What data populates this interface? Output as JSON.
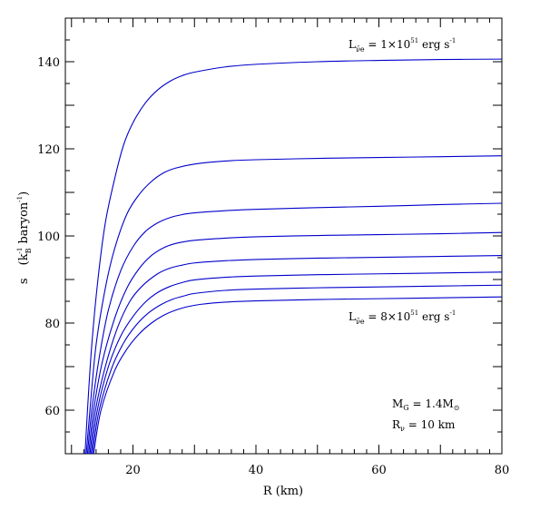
{
  "chart_data": {
    "type": "line",
    "xlabel": "R (km)",
    "ylabel_parts": {
      "main": "s",
      "open": "(k",
      "sub": "B",
      "sup": "-1",
      "rest": " baryon",
      "sup2": "-1",
      "close": ")"
    },
    "xlim": [
      9,
      80
    ],
    "ylim": [
      50,
      150
    ],
    "x_ticks": [
      20,
      40,
      60,
      80
    ],
    "y_ticks": [
      60,
      80,
      100,
      120,
      140
    ],
    "line_color": "#0000cc",
    "grid": false,
    "series": [
      {
        "points": [
          [
            12.2,
            50
          ],
          [
            12.6,
            60
          ],
          [
            13.3,
            75
          ],
          [
            14.3,
            90
          ],
          [
            15.5,
            103
          ],
          [
            17,
            113
          ],
          [
            18.5,
            121
          ],
          [
            20,
            126
          ],
          [
            22,
            130.5
          ],
          [
            24,
            133.5
          ],
          [
            26,
            135.5
          ],
          [
            28,
            136.8
          ],
          [
            30,
            137.6
          ],
          [
            35,
            138.8
          ],
          [
            40,
            139.4
          ],
          [
            50,
            140.0
          ],
          [
            60,
            140.3
          ],
          [
            70,
            140.5
          ],
          [
            80,
            140.6
          ]
        ]
      },
      {
        "points": [
          [
            12.4,
            50
          ],
          [
            13.0,
            60
          ],
          [
            14.0,
            75
          ],
          [
            15.5,
            88
          ],
          [
            17,
            97
          ],
          [
            19,
            105
          ],
          [
            21,
            109.5
          ],
          [
            23,
            112.5
          ],
          [
            25,
            114.5
          ],
          [
            27,
            115.6
          ],
          [
            30,
            116.5
          ],
          [
            35,
            117.2
          ],
          [
            40,
            117.5
          ],
          [
            50,
            117.8
          ],
          [
            60,
            118.0
          ],
          [
            70,
            118.2
          ],
          [
            80,
            118.4
          ]
        ]
      },
      {
        "points": [
          [
            12.6,
            50
          ],
          [
            13.3,
            60
          ],
          [
            14.5,
            72
          ],
          [
            16,
            83
          ],
          [
            18,
            92
          ],
          [
            20,
            97.5
          ],
          [
            22,
            101
          ],
          [
            24,
            103
          ],
          [
            26,
            104.2
          ],
          [
            28,
            104.9
          ],
          [
            30,
            105.3
          ],
          [
            35,
            105.8
          ],
          [
            40,
            106.1
          ],
          [
            50,
            106.5
          ],
          [
            60,
            106.8
          ],
          [
            70,
            107.2
          ],
          [
            80,
            107.5
          ]
        ]
      },
      {
        "points": [
          [
            12.8,
            50
          ],
          [
            13.6,
            60
          ],
          [
            15,
            71
          ],
          [
            17,
            81
          ],
          [
            19,
            88
          ],
          [
            21,
            92.5
          ],
          [
            23,
            95.5
          ],
          [
            25,
            97.3
          ],
          [
            27,
            98.3
          ],
          [
            30,
            99.0
          ],
          [
            35,
            99.5
          ],
          [
            40,
            99.8
          ],
          [
            50,
            100.1
          ],
          [
            60,
            100.3
          ],
          [
            70,
            100.5
          ],
          [
            80,
            100.8
          ]
        ]
      },
      {
        "points": [
          [
            13.0,
            50
          ],
          [
            13.9,
            60
          ],
          [
            15.5,
            70
          ],
          [
            17.5,
            79
          ],
          [
            19.5,
            85
          ],
          [
            21.5,
            88.5
          ],
          [
            24,
            91.3
          ],
          [
            26,
            92.6
          ],
          [
            28,
            93.3
          ],
          [
            30,
            93.8
          ],
          [
            35,
            94.3
          ],
          [
            40,
            94.6
          ],
          [
            50,
            94.9
          ],
          [
            60,
            95.1
          ],
          [
            70,
            95.3
          ],
          [
            80,
            95.5
          ]
        ]
      },
      {
        "points": [
          [
            13.2,
            50
          ],
          [
            14.2,
            60
          ],
          [
            16,
            70
          ],
          [
            18,
            77
          ],
          [
            20,
            81.5
          ],
          [
            22,
            84.8
          ],
          [
            24,
            87
          ],
          [
            26,
            88.4
          ],
          [
            28,
            89.3
          ],
          [
            30,
            89.9
          ],
          [
            35,
            90.5
          ],
          [
            40,
            90.8
          ],
          [
            50,
            91.1
          ],
          [
            60,
            91.3
          ],
          [
            70,
            91.5
          ],
          [
            80,
            91.7
          ]
        ]
      },
      {
        "points": [
          [
            13.4,
            50
          ],
          [
            14.5,
            60
          ],
          [
            16.5,
            69.5
          ],
          [
            18.5,
            75.5
          ],
          [
            20.5,
            79.5
          ],
          [
            22.5,
            82.3
          ],
          [
            24.5,
            84.2
          ],
          [
            26.5,
            85.5
          ],
          [
            28.5,
            86.3
          ],
          [
            30,
            86.8
          ],
          [
            35,
            87.5
          ],
          [
            40,
            87.8
          ],
          [
            50,
            88.1
          ],
          [
            60,
            88.3
          ],
          [
            70,
            88.5
          ],
          [
            80,
            88.7
          ]
        ]
      },
      {
        "points": [
          [
            13.6,
            50
          ],
          [
            14.8,
            60
          ],
          [
            17,
            69
          ],
          [
            19,
            74
          ],
          [
            21,
            77.5
          ],
          [
            23,
            80
          ],
          [
            25,
            81.8
          ],
          [
            27,
            83
          ],
          [
            29,
            83.8
          ],
          [
            31,
            84.3
          ],
          [
            35,
            84.8
          ],
          [
            40,
            85.1
          ],
          [
            50,
            85.4
          ],
          [
            60,
            85.6
          ],
          [
            70,
            85.8
          ],
          [
            80,
            86.0
          ]
        ]
      }
    ]
  },
  "annotations": {
    "top_label": {
      "prefix": "L",
      "sub": "ν̄e",
      "value": " = 1×10",
      "sup": "51",
      "unit": " erg  s",
      "unit_sup": "-1"
    },
    "bottom_label": {
      "prefix": "L",
      "sub": "ν̄e",
      "value": " = 8×10",
      "sup": "51",
      "unit": " erg  s",
      "unit_sup": "-1"
    },
    "mass": {
      "prefix": "M",
      "sub": "G",
      "text": " = 1.4M",
      "sub2": "⊙"
    },
    "radius": {
      "prefix": "R",
      "sub": "ν",
      "text": " = 10  km"
    }
  }
}
